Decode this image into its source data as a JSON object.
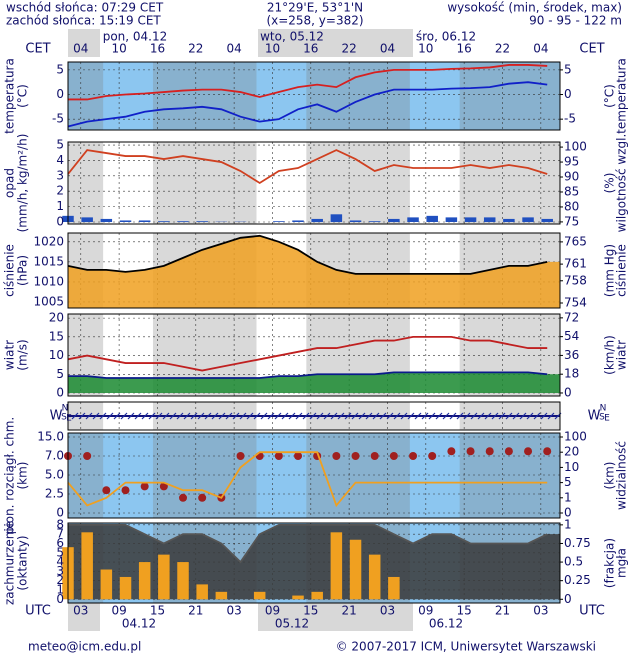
{
  "header": {
    "sunrise": "wschód słońca: 07:29 CET",
    "sunset": "zachód słońca: 15:19 CET",
    "coords": "21°29'E, 53°1'N",
    "grid_point": "(x=258, y=382)",
    "altitude_label": "wysokość (min, środek, max)",
    "altitude": "90 - 95 - 122 m",
    "tz_top": "CET",
    "tz_bottom": "UTC",
    "top_dates": [
      "pon, 04.12",
      "wto, 05.12",
      "śro, 06.12"
    ],
    "bottom_dates": [
      "04.12",
      "05.12",
      "06.12"
    ]
  },
  "footer": {
    "email": "meteo@icm.edu.pl",
    "copyright": "© 2007-2017 ICM, Uniwersytet Warszawski"
  },
  "chart_data": {
    "type": "meteogram",
    "x": [
      1,
      4,
      7,
      10,
      13,
      16,
      19,
      22,
      25,
      28,
      31,
      34,
      37,
      40,
      43,
      46,
      49,
      52,
      55,
      58,
      61,
      64,
      67,
      70,
      73,
      76
    ],
    "xlim": [
      1,
      78
    ],
    "xticks": [
      {
        "value": 3,
        "label": "03"
      },
      {
        "value": 9,
        "label": "09"
      },
      {
        "value": 15,
        "label": "15"
      },
      {
        "value": 21,
        "label": "21"
      },
      {
        "value": 27,
        "label": "03"
      },
      {
        "value": 33,
        "label": "09"
      },
      {
        "value": 39,
        "label": "15"
      },
      {
        "value": 45,
        "label": "21"
      },
      {
        "value": 51,
        "label": "03"
      },
      {
        "value": 57,
        "label": "09"
      },
      {
        "value": 63,
        "label": "15"
      },
      {
        "value": 69,
        "label": "21"
      },
      {
        "value": 75,
        "label": "03"
      }
    ],
    "cet_ticks": [
      {
        "value": 3,
        "label": "04"
      },
      {
        "value": 9,
        "label": "10"
      },
      {
        "value": 15,
        "label": "16"
      },
      {
        "value": 21,
        "label": "22"
      },
      {
        "value": 27,
        "label": "04"
      },
      {
        "value": 33,
        "label": "10"
      },
      {
        "value": 39,
        "label": "16"
      },
      {
        "value": 45,
        "label": "22"
      },
      {
        "value": 51,
        "label": "04"
      },
      {
        "value": 57,
        "label": "10"
      },
      {
        "value": 63,
        "label": "16"
      },
      {
        "value": 69,
        "label": "22"
      },
      {
        "value": 75,
        "label": "04"
      }
    ],
    "panels": [
      {
        "labels_left": [
          "temperatura",
          "(°C)"
        ],
        "labels_right": [
          "temperatura",
          "(°C)"
        ],
        "background": "#8cc6f0",
        "ylim": [
          -7.2,
          6.6
        ],
        "yticks": [
          -5,
          0,
          5
        ],
        "y2lim": [
          -7.2,
          6.6
        ],
        "y2ticks": [
          -5,
          0,
          5
        ],
        "series": [
          {
            "type": "line",
            "color": "#d62020",
            "values": [
              -1,
              -1,
              -0.3,
              0,
              0.2,
              0.5,
              0.8,
              1,
              1,
              0.5,
              -0.5,
              0.5,
              1.5,
              2,
              1.5,
              3.5,
              4.5,
              5,
              5,
              5,
              5.2,
              5.3,
              5.5,
              6,
              6,
              5.8
            ]
          },
          {
            "type": "line",
            "color": "#1020c8",
            "values": [
              -6.5,
              -5.5,
              -5,
              -4.5,
              -3.5,
              -3,
              -2.8,
              -2.5,
              -3,
              -4.5,
              -5.5,
              -5,
              -3,
              -2,
              -3.5,
              -1.5,
              0,
              1,
              1,
              1,
              1.2,
              1.3,
              1.5,
              2.2,
              2.5,
              2
            ]
          }
        ]
      },
      {
        "labels_left": [
          "opad",
          "(mm/h, kg/m²/h)"
        ],
        "labels_right": [
          "wilgotność wzgl.",
          "(%)"
        ],
        "background": "#ffffff",
        "ylim": [
          -0.13,
          5.2
        ],
        "yticks": [
          0,
          1,
          2,
          3,
          4,
          5
        ],
        "y2lim": [
          74.3,
          101.7
        ],
        "y2ticks": [
          75,
          80,
          85,
          90,
          95,
          100
        ],
        "series": [
          {
            "type": "bar",
            "color": "#2050c0",
            "values": [
              0.4,
              0.3,
              0.2,
              0.1,
              0.1,
              0.05,
              0.05,
              0.05,
              0.02,
              0.02,
              0,
              0.05,
              0.1,
              0.2,
              0.5,
              0.1,
              0.05,
              0.2,
              0.3,
              0.4,
              0.3,
              0.3,
              0.3,
              0.2,
              0.3,
              0.2
            ]
          },
          {
            "type": "line",
            "color": "#d04020",
            "axis": "y2",
            "values": [
              91,
              99,
              98,
              97,
              97,
              96,
              97,
              96,
              95,
              92,
              88,
              92,
              93,
              96,
              99,
              96,
              92,
              94,
              93,
              93,
              93,
              94,
              93,
              94,
              93,
              91
            ]
          }
        ]
      },
      {
        "labels_left": [
          "ciśnienie",
          "(hPa)"
        ],
        "labels_right": [
          "ciśnienie",
          "(mm Hg)"
        ],
        "background": "#ffffff",
        "ylim": [
          1003.5,
          1022.2
        ],
        "yticks": [
          1005,
          1010,
          1015,
          1020
        ],
        "y2lim": [
          753.1,
          766.6
        ],
        "y2ticks": [
          754,
          758,
          761,
          765
        ],
        "series": [
          {
            "type": "area",
            "color": "#000000",
            "fill": "#f0a020",
            "values": [
              1014,
              1013,
              1013,
              1012.5,
              1013,
              1014,
              1016,
              1018,
              1019.5,
              1021,
              1021.5,
              1020,
              1018,
              1015,
              1013,
              1012,
              1012,
              1012,
              1012,
              1012,
              1012,
              1012,
              1013,
              1014,
              1014,
              1015
            ]
          }
        ]
      },
      {
        "labels_left": [
          "wiatr",
          "(m/s)"
        ],
        "labels_right": [
          "wiatr",
          "(km/h)"
        ],
        "background": "#ffffff",
        "ylim": [
          -0.8,
          21.1
        ],
        "yticks": [
          0,
          5,
          10,
          15,
          20
        ],
        "y2lim": [
          -2.9,
          75.7
        ],
        "y2ticks": [
          0,
          18,
          36,
          54,
          72
        ],
        "series": [
          {
            "type": "area",
            "color": "#0a1a8a",
            "fill": "#1a8a30",
            "values": [
              4.5,
              4.5,
              4,
              4,
              4,
              4,
              4,
              4,
              4,
              4,
              4,
              4.5,
              4.5,
              5,
              5,
              5,
              5,
              5.5,
              5.5,
              5.5,
              5.5,
              5.5,
              5.5,
              5.5,
              5.5,
              5
            ]
          },
          {
            "type": "line",
            "color": "#c02020",
            "values": [
              9,
              10,
              9,
              8,
              8,
              8,
              7,
              6,
              7,
              8,
              9,
              10,
              11,
              12,
              12,
              13,
              14,
              14,
              15,
              15,
              15,
              14,
              14,
              13,
              12,
              12
            ]
          }
        ]
      },
      {
        "type": "wind-direction",
        "compass": [
          "N",
          "W",
          "E",
          "S"
        ],
        "background": "#ffffff"
      },
      {
        "labels_left": [
          "pion. rozciągł. chm.",
          "(km)"
        ],
        "labels_right": [
          "widzialność",
          "(km)"
        ],
        "background": "#8cc6f0",
        "yscale": "ticks",
        "ylim": [
          0,
          15
        ],
        "yticks": [
          0,
          2.5,
          {
            "value": 5,
            "label": "5.0"
          },
          {
            "value": 7,
            "label": "7.0"
          },
          {
            "value": 15,
            "label": "15.0"
          }
        ],
        "y2lim": [
          0,
          100
        ],
        "y2ticks": [
          0,
          1,
          5,
          10,
          20,
          100
        ],
        "series": [
          {
            "type": "scatter",
            "color": "#a02020",
            "values": [
              7,
              7,
              3,
              3,
              3.5,
              3.5,
              2,
              2,
              2,
              7,
              7,
              7,
              7,
              7,
              7,
              7,
              7,
              7,
              7,
              7,
              9,
              9,
              9,
              9,
              9,
              9
            ]
          },
          {
            "type": "line",
            "color": "#f0a020",
            "axis": "y2",
            "values": [
              5,
              0.5,
              1,
              5,
              5,
              5,
              3,
              3,
              1,
              10,
              20,
              20,
              20,
              20,
              0.5,
              5,
              5,
              5,
              5,
              5,
              5,
              5,
              5,
              5,
              5,
              5
            ]
          }
        ]
      },
      {
        "labels_left": [
          "zachmurzenie",
          "(oktanty)"
        ],
        "labels_right": [
          "mgła",
          "(frakcja)"
        ],
        "background": "#8cc6f0",
        "ylim": [
          -0.4,
          8.2
        ],
        "yticks": [
          0,
          1,
          2,
          3,
          4,
          5,
          6,
          7,
          8
        ],
        "y2lim": [
          -0.05,
          1.025
        ],
        "y2ticks": [
          0,
          0.25,
          0.5,
          0.75,
          1
        ],
        "series": [
          {
            "type": "area",
            "color": "#555555",
            "fill": "#3a3a3a",
            "values": [
              8,
              8,
              8,
              8,
              7,
              6,
              7,
              7,
              6,
              4,
              7,
              8,
              8,
              8,
              8,
              8,
              8,
              7,
              6,
              7,
              7,
              6,
              6,
              6,
              6,
              7
            ]
          },
          {
            "type": "bar",
            "color": "#f0a020",
            "axis": "y2",
            "values": [
              0.7,
              0.9,
              0.4,
              0.3,
              0.5,
              0.6,
              0.5,
              0.2,
              0.1,
              0,
              0.1,
              0,
              0.05,
              0.1,
              0.9,
              0.8,
              0.6,
              0.3,
              0,
              0,
              0,
              0,
              0,
              0,
              0,
              0
            ]
          }
        ]
      }
    ]
  }
}
